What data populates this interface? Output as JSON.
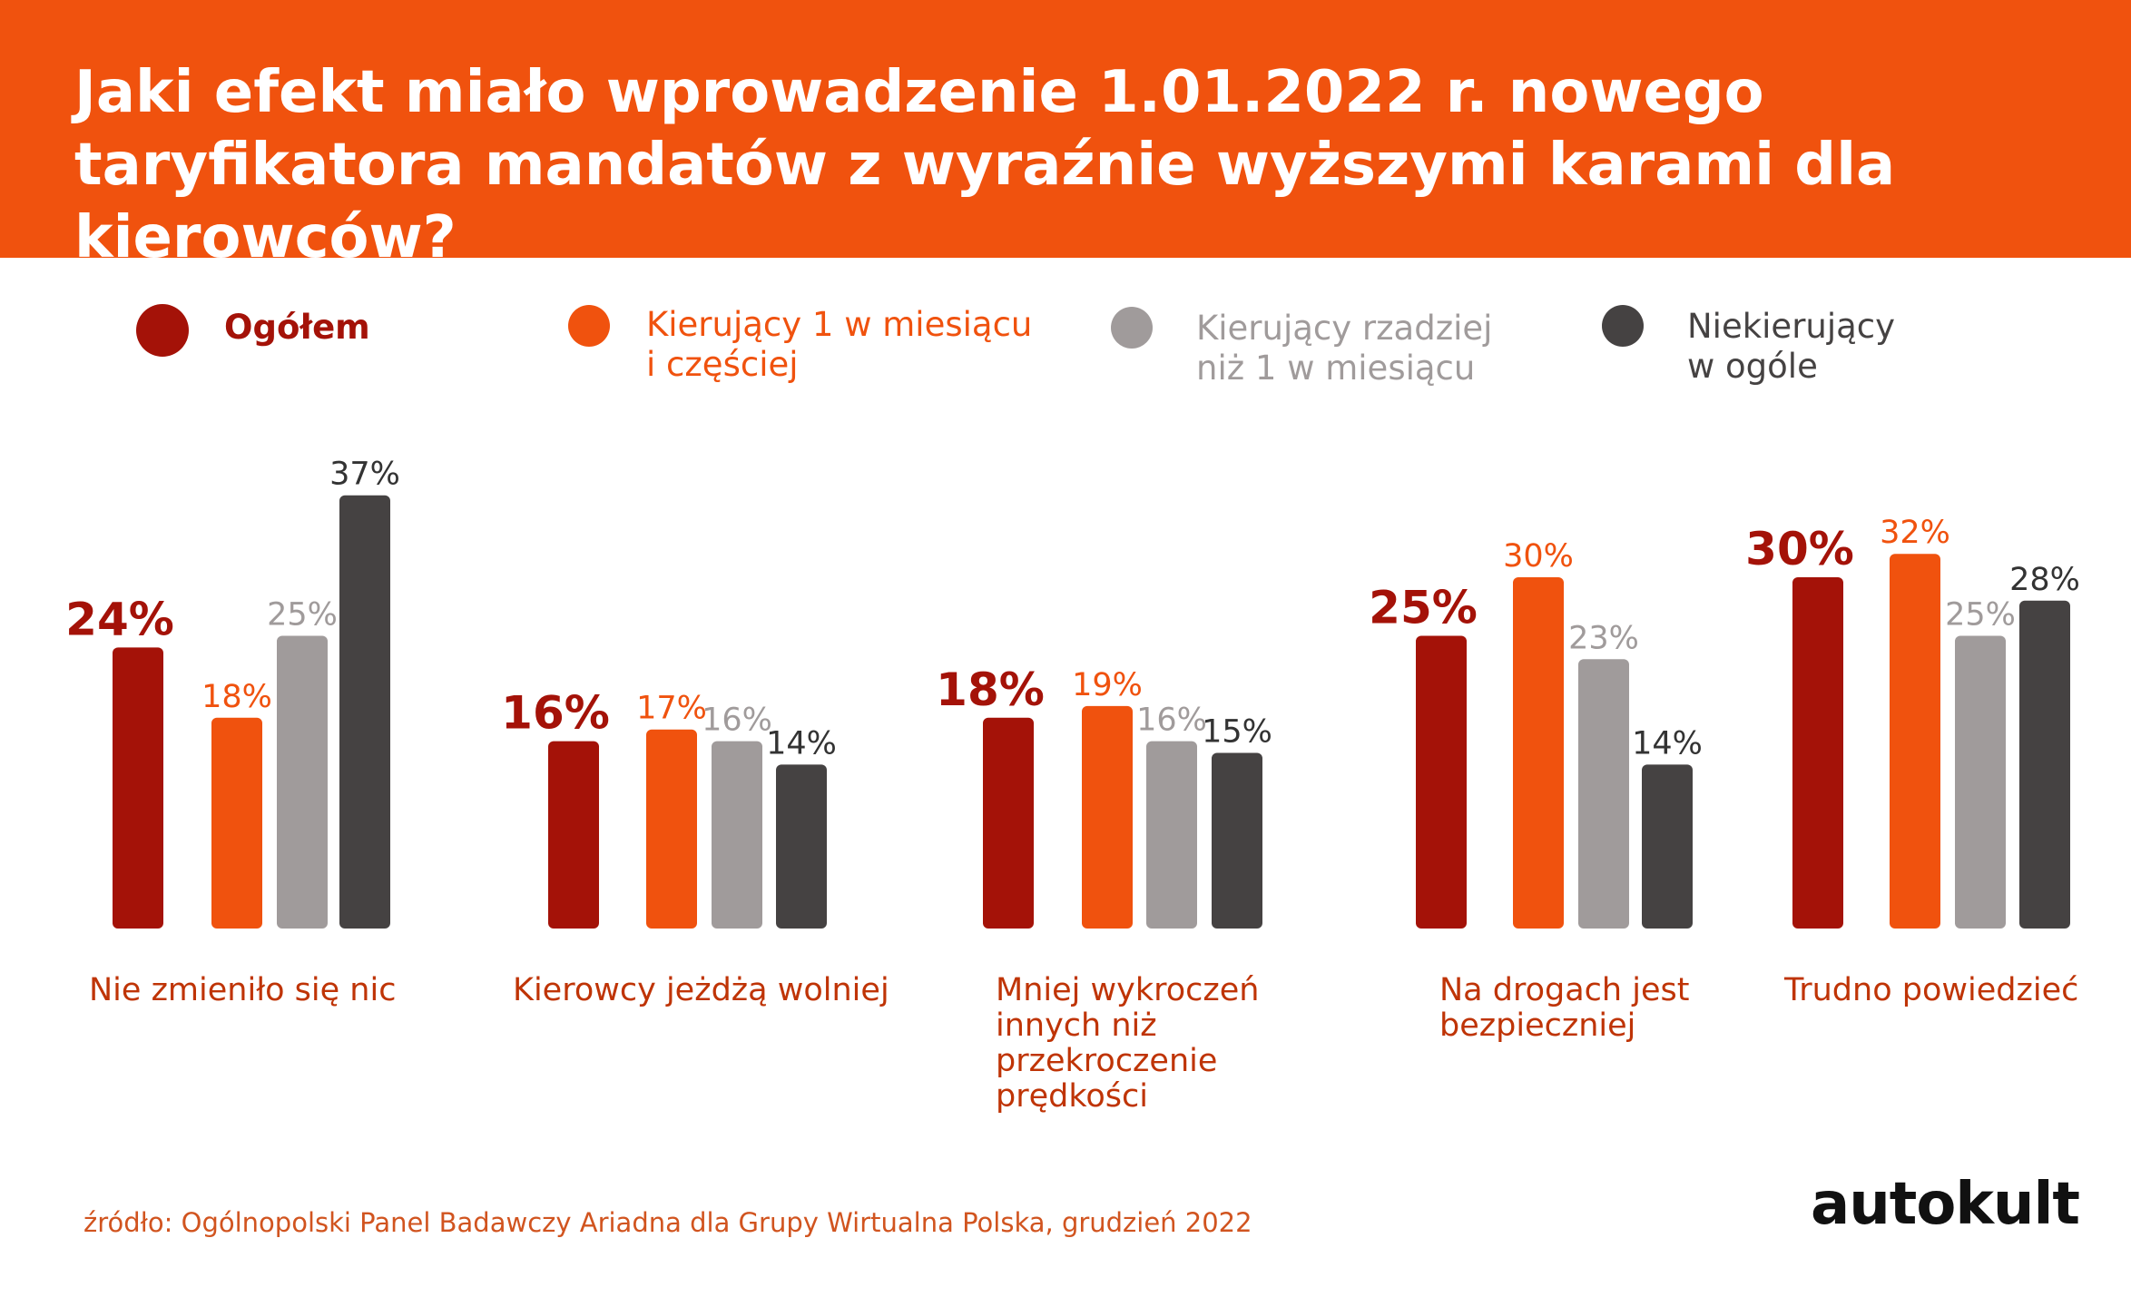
{
  "header": {
    "title": "Jaki efekt miało wprowadzenie 1.01.2022 r. nowego taryfikatora mandatów z wyraźnie wyższymi karami dla kierowców?"
  },
  "legend": [
    {
      "label": "Ogółem",
      "color": "#a41208"
    },
    {
      "label": "Kierujący 1 w miesiącu\ni częściej",
      "color": "#f0520e"
    },
    {
      "label": "Kierujący rzadziej\nniż 1 w miesiącu",
      "color": "#a09b9b"
    },
    {
      "label": "Niekierujący\nw ogóle",
      "color": "#454242"
    }
  ],
  "chart_data": {
    "type": "bar",
    "categories": [
      "Nie zmieniło się nic",
      "Kierowcy jeżdżą wolniej",
      "Mniej wykroczeń\ninnych niż\nprzekroczenie\nprędkości",
      "Na drogach jest\nbezpieczniej",
      "Trudno powiedzieć"
    ],
    "series": [
      {
        "name": "Ogółem",
        "color": "#a41208",
        "label_color": "#a41208",
        "values": [
          24,
          16,
          18,
          25,
          30
        ],
        "labels": [
          "24%",
          "16%",
          "18%",
          "25%",
          "30%"
        ]
      },
      {
        "name": "Kierujący 1 w miesiącu i częściej",
        "color": "#f0520e",
        "label_color": "#f0520e",
        "values": [
          18,
          17,
          19,
          30,
          32
        ],
        "labels": [
          "18%",
          "17%",
          "19%",
          "30%",
          "32%"
        ]
      },
      {
        "name": "Kierujący rzadziej niż 1 w miesiącu",
        "color": "#a09b9b",
        "label_color": "#a09b9b",
        "values": [
          25,
          16,
          16,
          23,
          25
        ],
        "labels": [
          "25%",
          "16%",
          "16%",
          "23%",
          "25%"
        ]
      },
      {
        "name": "Niekierujący w ogóle",
        "color": "#454242",
        "label_color": "#333333",
        "values": [
          37,
          14,
          15,
          14,
          28
        ],
        "labels": [
          "37%",
          "14%",
          "15%",
          "14%",
          "28%"
        ]
      }
    ],
    "ylim": [
      0,
      37
    ]
  },
  "footer": {
    "source": "źródło: Ogólnopolski Panel Badawczy Ariadna dla Grupy Wirtualna Polska, grudzień 2022",
    "brand": "autokult"
  }
}
